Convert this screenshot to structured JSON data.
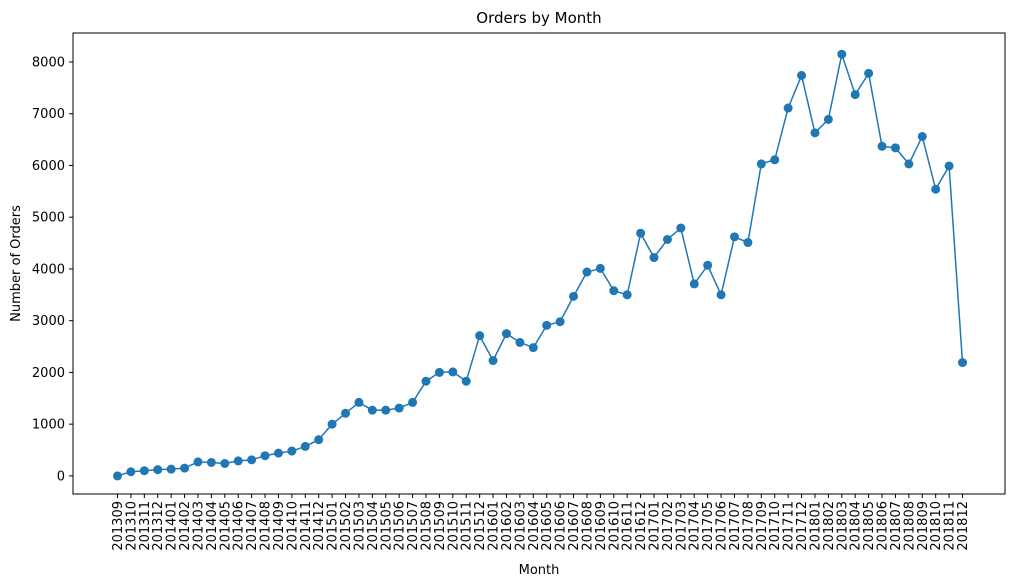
{
  "chart_data": {
    "type": "line",
    "title": "Orders by Month",
    "xlabel": "Month",
    "ylabel": "Number of Orders",
    "ylim": [
      -350,
      8560
    ],
    "yticks": [
      0,
      1000,
      2000,
      3000,
      4000,
      5000,
      6000,
      7000,
      8000
    ],
    "grid": false,
    "markers": true,
    "color": "#1f77b4",
    "categories": [
      "201309",
      "201310",
      "201311",
      "201312",
      "201401",
      "201402",
      "201403",
      "201404",
      "201405",
      "201406",
      "201407",
      "201408",
      "201409",
      "201410",
      "201411",
      "201412",
      "201501",
      "201502",
      "201503",
      "201504",
      "201505",
      "201506",
      "201507",
      "201508",
      "201509",
      "201510",
      "201511",
      "201512",
      "201601",
      "201602",
      "201603",
      "201604",
      "201605",
      "201606",
      "201607",
      "201608",
      "201609",
      "201610",
      "201611",
      "201612",
      "201701",
      "201702",
      "201703",
      "201704",
      "201705",
      "201706",
      "201707",
      "201708",
      "201709",
      "201710",
      "201711",
      "201712",
      "201801",
      "201802",
      "201803",
      "201804",
      "201805",
      "201806",
      "201807",
      "201808",
      "201809",
      "201810",
      "201811",
      "201812"
    ],
    "values": [
      0,
      80,
      100,
      120,
      130,
      150,
      270,
      260,
      240,
      290,
      310,
      390,
      440,
      480,
      570,
      700,
      1000,
      1210,
      1420,
      1270,
      1270,
      1310,
      1420,
      1830,
      2000,
      2010,
      1830,
      2710,
      2230,
      2750,
      2580,
      2480,
      2910,
      2980,
      3470,
      3940,
      4010,
      3580,
      3500,
      4690,
      4220,
      4570,
      4790,
      3710,
      4070,
      3500,
      4620,
      4510,
      6030,
      6110,
      7110,
      7740,
      6630,
      6890,
      8150,
      7370,
      7780,
      6370,
      6340,
      6030,
      6560,
      5540,
      5990,
      2190
    ]
  }
}
